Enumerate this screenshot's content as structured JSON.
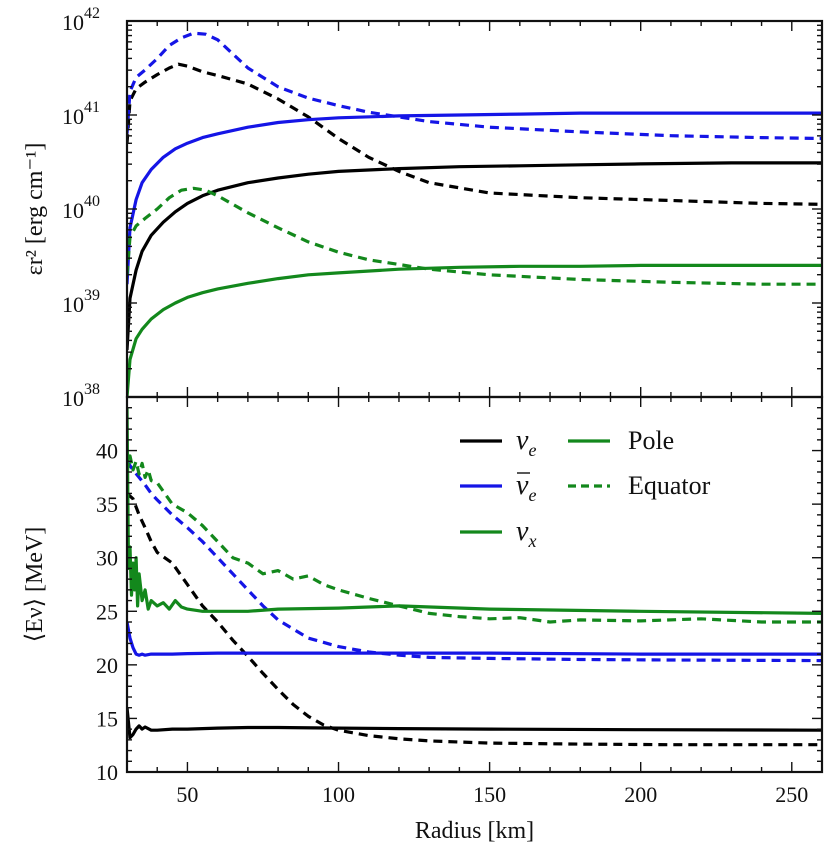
{
  "chart_data": {
    "type": "line",
    "xlabel": "Radius [km]",
    "xlim": [
      30,
      260
    ],
    "xticks": [
      50,
      100,
      150,
      200,
      250
    ],
    "panels": [
      {
        "name": "top",
        "ylabel": "εr² [erg cm⁻¹]",
        "yscale": "log",
        "ylim": [
          1e+38,
          1e+42
        ],
        "yticks": [
          {
            "mant": "10",
            "exp": "38",
            "value": 38
          },
          {
            "mant": "10",
            "exp": "39",
            "value": 39
          },
          {
            "mant": "10",
            "exp": "40",
            "value": 40
          },
          {
            "mant": "10",
            "exp": "41",
            "value": 41
          },
          {
            "mant": "10",
            "exp": "42",
            "value": 42
          }
        ],
        "series": [
          {
            "name": "nu_e Pole",
            "color": "#000000",
            "style": "solid",
            "x": [
              30,
              31,
              33,
              35,
              38,
              42,
              46,
              50,
              55,
              60,
              70,
              80,
              90,
              100,
              120,
              140,
              160,
              180,
              200,
              230,
              260
            ],
            "y": [
              38.5,
              39.05,
              39.35,
              39.55,
              39.72,
              39.86,
              39.97,
              40.06,
              40.14,
              40.2,
              40.28,
              40.33,
              40.37,
              40.4,
              40.43,
              40.45,
              40.46,
              40.47,
              40.48,
              40.49,
              40.49
            ]
          },
          {
            "name": "nu_e Equator",
            "color": "#000000",
            "style": "dashed",
            "x": [
              30,
              31,
              33,
              36,
              40,
              44,
              47,
              50,
              55,
              60,
              70,
              80,
              90,
              100,
              110,
              120,
              130,
              150,
              180,
              210,
              240,
              260
            ],
            "y": [
              40.7,
              41.15,
              41.28,
              41.35,
              41.43,
              41.5,
              41.54,
              41.52,
              41.46,
              41.42,
              41.33,
              41.17,
              40.98,
              40.75,
              40.55,
              40.4,
              40.28,
              40.17,
              40.12,
              40.09,
              40.06,
              40.05
            ]
          },
          {
            "name": "nubar_e Pole",
            "color": "#1515e6",
            "style": "solid",
            "x": [
              30,
              31,
              33,
              35,
              38,
              42,
              46,
              50,
              55,
              60,
              70,
              80,
              90,
              100,
              120,
              140,
              160,
              180,
              200,
              230,
              260
            ],
            "y": [
              39.2,
              39.8,
              40.1,
              40.28,
              40.42,
              40.55,
              40.64,
              40.7,
              40.76,
              40.8,
              40.87,
              40.92,
              40.95,
              40.97,
              40.99,
              41.0,
              41.01,
              41.02,
              41.02,
              41.02,
              41.02
            ]
          },
          {
            "name": "nubar_e Equator",
            "color": "#1515e6",
            "style": "dashed",
            "x": [
              30,
              31,
              33,
              36,
              40,
              44,
              48,
              52,
              56,
              60,
              65,
              70,
              80,
              90,
              100,
              110,
              120,
              130,
              150,
              180,
              210,
              240,
              260
            ],
            "y": [
              40.8,
              41.25,
              41.4,
              41.48,
              41.6,
              41.74,
              41.82,
              41.87,
              41.86,
              41.8,
              41.65,
              41.5,
              41.3,
              41.18,
              41.1,
              41.03,
              40.98,
              40.93,
              40.87,
              40.82,
              40.78,
              40.76,
              40.75
            ]
          },
          {
            "name": "nu_x Pole",
            "color": "#13881c",
            "style": "solid",
            "x": [
              30,
              31,
              33,
              35,
              38,
              42,
              46,
              50,
              55,
              60,
              70,
              80,
              90,
              100,
              120,
              140,
              160,
              180,
              200,
              230,
              260
            ],
            "y": [
              38.0,
              38.4,
              38.62,
              38.72,
              38.83,
              38.93,
              39.0,
              39.06,
              39.11,
              39.15,
              39.21,
              39.26,
              39.3,
              39.32,
              39.36,
              39.38,
              39.39,
              39.39,
              39.4,
              39.4,
              39.4
            ]
          },
          {
            "name": "nu_x Equator",
            "color": "#13881c",
            "style": "dashed",
            "x": [
              30,
              31,
              33,
              36,
              40,
              44,
              48,
              52,
              56,
              60,
              65,
              70,
              80,
              90,
              100,
              110,
              120,
              130,
              150,
              180,
              210,
              240,
              260
            ],
            "y": [
              39.3,
              39.7,
              39.82,
              39.9,
              40.0,
              40.12,
              40.2,
              40.22,
              40.2,
              40.14,
              40.05,
              39.96,
              39.8,
              39.65,
              39.54,
              39.46,
              39.41,
              39.36,
              39.3,
              39.25,
              39.22,
              39.2,
              39.2
            ]
          }
        ]
      },
      {
        "name": "bottom",
        "ylabel": "⟨Eν⟩ [MeV]",
        "yscale": "linear",
        "ylim": [
          10,
          45
        ],
        "yticks": [
          10,
          15,
          20,
          25,
          30,
          35,
          40
        ],
        "series": [
          {
            "name": "nu_e Pole",
            "color": "#000000",
            "style": "solid",
            "x": [
              30,
              31,
              32,
              33,
              34,
              35,
              36,
              38,
              40,
              45,
              50,
              60,
              70,
              80,
              100,
              120,
              150,
              200,
              260
            ],
            "y": [
              16,
              13.2,
              13.5,
              14.0,
              14.3,
              14.0,
              14.2,
              13.9,
              13.9,
              14.0,
              14.0,
              14.1,
              14.15,
              14.15,
              14.1,
              14.05,
              14.0,
              13.95,
              13.9
            ]
          },
          {
            "name": "nu_e Equator",
            "color": "#000000",
            "style": "dashed",
            "x": [
              30,
              32,
              34,
              36,
              38,
              40,
              45,
              50,
              55,
              60,
              65,
              70,
              75,
              80,
              85,
              90,
              95,
              100,
              110,
              120,
              130,
              150,
              180,
              210,
              260
            ],
            "y": [
              36,
              35.5,
              34.0,
              32.8,
              31.5,
              30.5,
              29.5,
              27.5,
              25.5,
              24.0,
              22.3,
              20.8,
              19.2,
              17.7,
              16.3,
              15.2,
              14.4,
              13.9,
              13.4,
              13.1,
              12.9,
              12.7,
              12.6,
              12.55,
              12.55
            ]
          },
          {
            "name": "nubar_e Pole",
            "color": "#1515e6",
            "style": "solid",
            "x": [
              30,
              31,
              32,
              33,
              34,
              35,
              36,
              38,
              40,
              45,
              50,
              60,
              80,
              100,
              150,
              200,
              260
            ],
            "y": [
              24,
              22.5,
              21.6,
              21.0,
              20.9,
              21.0,
              20.9,
              21.0,
              21.0,
              21.0,
              21.05,
              21.1,
              21.1,
              21.1,
              21.1,
              21.0,
              21.0
            ]
          },
          {
            "name": "nubar_e Equator",
            "color": "#1515e6",
            "style": "dashed",
            "x": [
              30,
              32,
              34,
              36,
              38,
              40,
              45,
              50,
              55,
              60,
              65,
              70,
              75,
              80,
              90,
              100,
              110,
              120,
              130,
              150,
              180,
              210,
              260
            ],
            "y": [
              39,
              38.2,
              37.5,
              36.8,
              36.0,
              35.4,
              34.0,
              32.8,
              31.5,
              30.0,
              28.5,
              27.0,
              25.5,
              24.2,
              22.5,
              21.7,
              21.2,
              20.9,
              20.7,
              20.6,
              20.5,
              20.45,
              20.4
            ]
          },
          {
            "name": "nu_x Pole",
            "color": "#13881c",
            "style": "solid",
            "x": [
              30,
              30.5,
              31,
              31.5,
              32,
              32.5,
              33,
              33.5,
              34,
              35,
              36,
              37,
              38,
              40,
              42,
              44,
              46,
              48,
              50,
              55,
              60,
              70,
              80,
              100,
              120,
              150,
              200,
              260
            ],
            "y": [
              44,
              29,
              31,
              26.5,
              29.5,
              27,
              30,
              25.5,
              28.5,
              26.0,
              27.0,
              25.2,
              26.0,
              25.5,
              25.8,
              25.2,
              26.0,
              25.4,
              25.2,
              25.0,
              25.0,
              25.0,
              25.2,
              25.3,
              25.5,
              25.2,
              25.0,
              24.8
            ]
          },
          {
            "name": "nu_x Equator",
            "color": "#13881c",
            "style": "dashed",
            "x": [
              30,
              31,
              32,
              33,
              34,
              35,
              36,
              37,
              38,
              40,
              45,
              50,
              55,
              60,
              65,
              70,
              75,
              80,
              85,
              90,
              95,
              100,
              110,
              120,
              130,
              140,
              150,
              160,
              170,
              180,
              200,
              220,
              240,
              260
            ],
            "y": [
              38.0,
              39.5,
              38.2,
              39.0,
              37.8,
              38.8,
              37.5,
              38.2,
              37.2,
              37.0,
              35.0,
              34.2,
              33.0,
              31.5,
              30.0,
              29.5,
              28.5,
              28.8,
              28.0,
              28.3,
              27.5,
              27.0,
              26.2,
              25.5,
              24.8,
              24.5,
              24.3,
              24.4,
              24.0,
              24.2,
              24.1,
              24.3,
              24.0,
              24.0
            ]
          }
        ]
      }
    ],
    "legend": {
      "position": "top-right",
      "flavors": [
        {
          "label": "ν",
          "sub": "e",
          "bar": false,
          "color": "#000000"
        },
        {
          "label": "ν",
          "sub": "e",
          "bar": true,
          "color": "#1515e6"
        },
        {
          "label": "ν",
          "sub": "x",
          "bar": false,
          "color": "#13881c"
        }
      ],
      "styles": [
        {
          "label": "Pole",
          "style": "solid",
          "color": "#13881c"
        },
        {
          "label": "Equator",
          "style": "dashed",
          "color": "#13881c"
        }
      ]
    }
  }
}
